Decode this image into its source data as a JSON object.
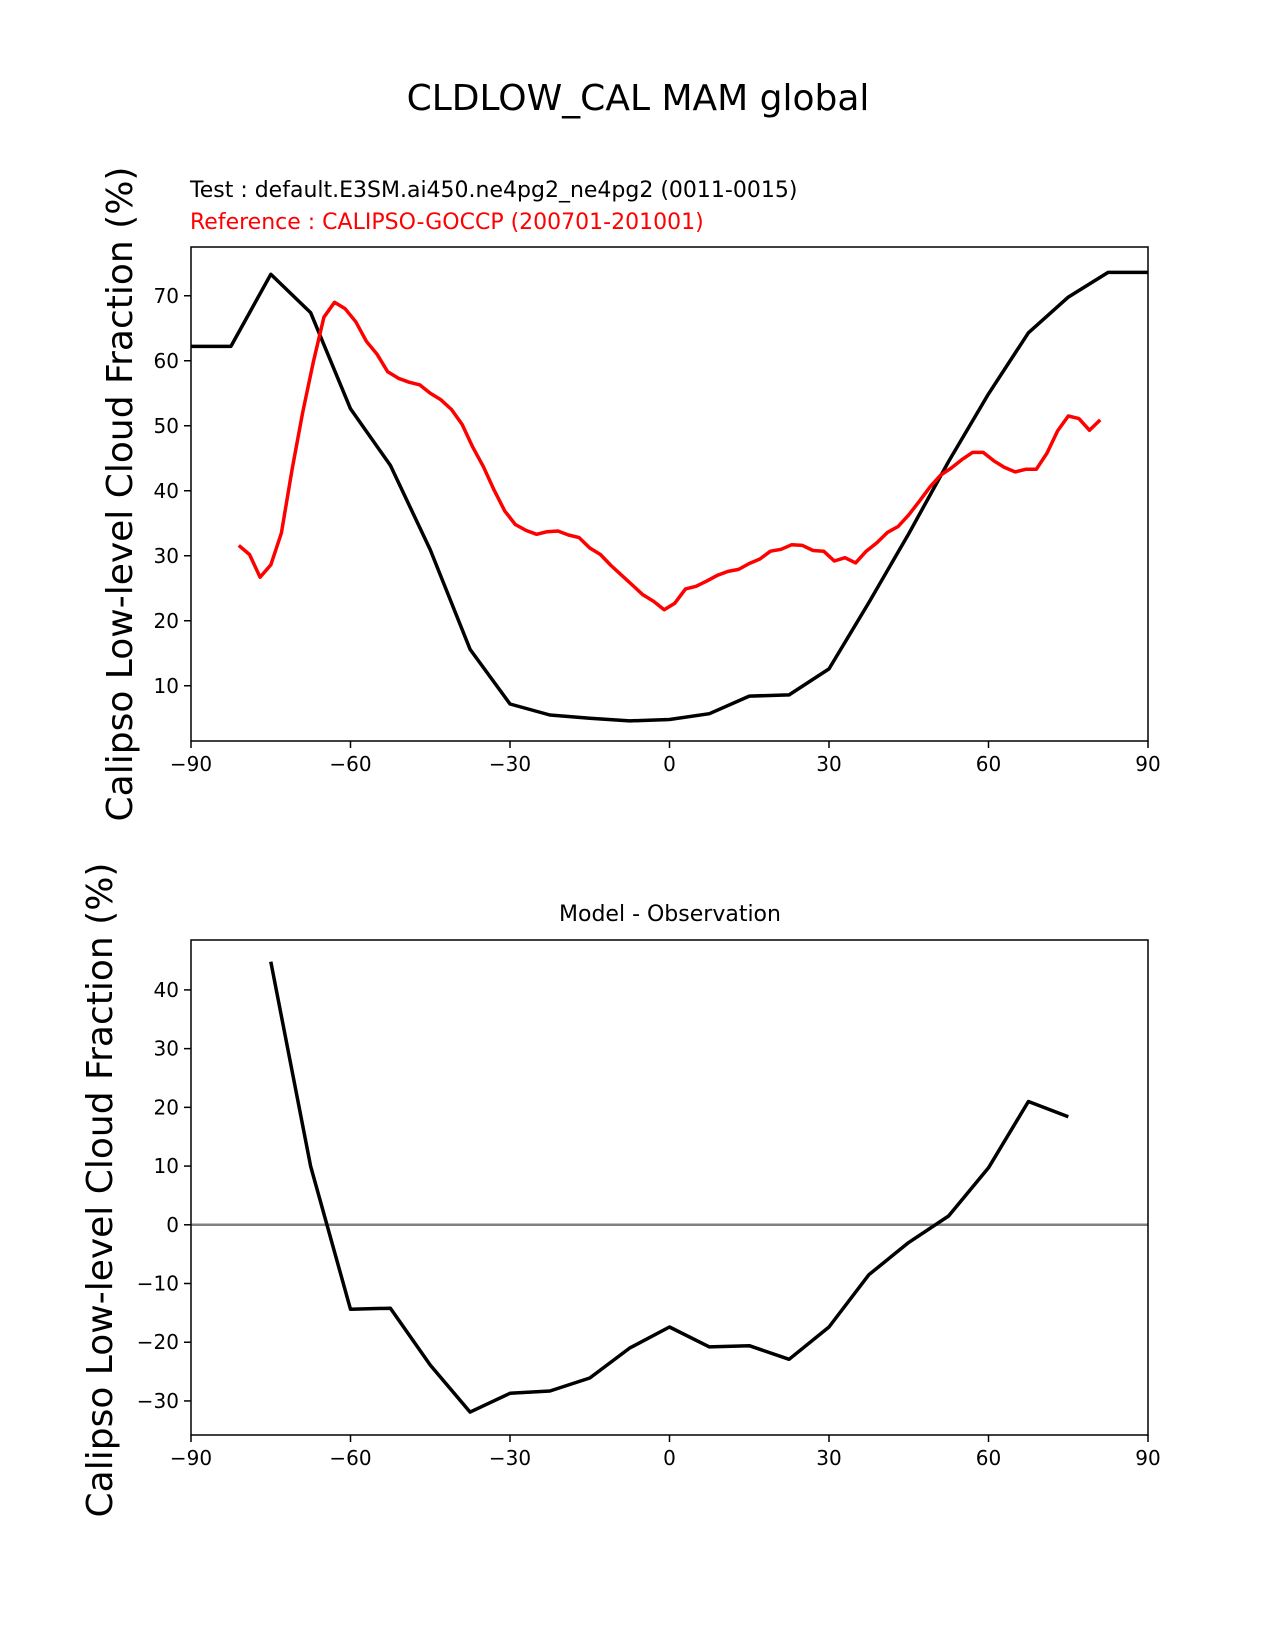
{
  "suptitle": "CLDLOW_CAL MAM global",
  "colors": {
    "test": "#000000",
    "reference": "#ff0000",
    "zero_line": "#808080"
  },
  "chart_data": [
    {
      "type": "line",
      "test_label": "Test : default.E3SM.ai450.ne4pg2_ne4pg2 (0011-0015)",
      "reference_label": "Reference : CALIPSO-GOCCP (200701-201001)",
      "ylabel": "Calipso Low-level Cloud Fraction (%)",
      "xlim": [
        -90,
        90
      ],
      "ylim": [
        1.5,
        77.5
      ],
      "xticks": [
        -90,
        -60,
        -30,
        0,
        30,
        60,
        90
      ],
      "xtick_labels": [
        "−90",
        "−60",
        "−30",
        "0",
        "30",
        "60",
        "90"
      ],
      "yticks": [
        10,
        20,
        30,
        40,
        50,
        60,
        70
      ],
      "ytick_labels": [
        "10",
        "20",
        "30",
        "40",
        "50",
        "60",
        "70"
      ],
      "series": [
        {
          "role": "test",
          "color": "#000000",
          "x": [
            -90,
            -82.5,
            -75,
            -67.5,
            -60,
            -52.5,
            -45,
            -37.5,
            -30,
            -22.5,
            -15,
            -7.5,
            0,
            7.5,
            15,
            22.5,
            30,
            37.5,
            45,
            52.5,
            60,
            67.5,
            75,
            82.5,
            90
          ],
          "y": [
            62.2,
            62.2,
            73.3,
            67.4,
            52.6,
            43.9,
            30.9,
            15.6,
            7.2,
            5.5,
            5.0,
            4.6,
            4.8,
            5.7,
            8.4,
            8.6,
            12.6,
            22.8,
            33.4,
            44.5,
            54.9,
            64.3,
            69.8,
            73.6,
            73.6
          ]
        },
        {
          "role": "reference",
          "color": "#ff0000",
          "x": [
            -81,
            -79,
            -77,
            -75,
            -73,
            -71,
            -69,
            -67,
            -65,
            -63,
            -61,
            -59,
            -57,
            -55,
            -53,
            -51,
            -49,
            -47,
            -45,
            -43,
            -41,
            -39,
            -37,
            -35,
            -33,
            -31,
            -29,
            -27,
            -25,
            -23,
            -21,
            -19,
            -17,
            -15,
            -13,
            -11,
            -9,
            -7,
            -5,
            -3,
            -1,
            1,
            3,
            5,
            7,
            9,
            11,
            13,
            15,
            17,
            19,
            21,
            23,
            25,
            27,
            29,
            31,
            33,
            35,
            37,
            39,
            41,
            43,
            45,
            47,
            49,
            51,
            53,
            55,
            57,
            59,
            61,
            63,
            65,
            67,
            69,
            71,
            73,
            75,
            77,
            79,
            81
          ],
          "y": [
            31.6,
            30.2,
            26.7,
            28.6,
            33.5,
            43.2,
            52.0,
            59.8,
            66.7,
            69.0,
            68.0,
            66.0,
            63.0,
            61.0,
            58.3,
            57.3,
            56.7,
            56.3,
            55.0,
            54.0,
            52.5,
            50.2,
            46.7,
            43.7,
            40.1,
            36.9,
            34.8,
            33.9,
            33.3,
            33.7,
            33.8,
            33.2,
            32.8,
            31.2,
            30.2,
            28.5,
            27.0,
            25.5,
            24.0,
            23.0,
            21.7,
            22.7,
            24.9,
            25.3,
            26.1,
            27.0,
            27.6,
            27.9,
            28.8,
            29.5,
            30.7,
            31.0,
            31.7,
            31.6,
            30.8,
            30.7,
            29.2,
            29.7,
            28.9,
            30.7,
            32.0,
            33.6,
            34.5,
            36.3,
            38.4,
            40.6,
            42.4,
            43.5,
            44.8,
            45.9,
            45.9,
            44.6,
            43.6,
            42.9,
            43.3,
            43.3,
            45.8,
            49.2,
            51.5,
            51.1,
            49.3,
            50.9
          ]
        }
      ]
    },
    {
      "type": "line",
      "title": "Model - Observation",
      "ylabel": "Calipso Low-level Cloud Fraction (%)",
      "xlim": [
        -90,
        90
      ],
      "ylim": [
        -35.8,
        48.5
      ],
      "xticks": [
        -90,
        -60,
        -30,
        0,
        30,
        60,
        90
      ],
      "xtick_labels": [
        "−90",
        "−60",
        "−30",
        "0",
        "30",
        "60",
        "90"
      ],
      "yticks": [
        -30,
        -20,
        -10,
        0,
        10,
        20,
        30,
        40
      ],
      "ytick_labels": [
        "−30",
        "−20",
        "−10",
        "0",
        "10",
        "20",
        "30",
        "40"
      ],
      "zero_line": true,
      "series": [
        {
          "role": "difference",
          "color": "#000000",
          "x": [
            -75,
            -67.5,
            -60,
            -52.5,
            -45,
            -37.5,
            -30,
            -22.5,
            -15,
            -7.5,
            0,
            7.5,
            15,
            22.5,
            30,
            37.5,
            45,
            52.5,
            60,
            67.5,
            75
          ],
          "y": [
            44.8,
            10.0,
            -14.4,
            -14.2,
            -23.9,
            -31.9,
            -28.7,
            -28.3,
            -26.1,
            -21.0,
            -17.4,
            -20.8,
            -20.6,
            -22.9,
            -17.4,
            -8.5,
            -3.0,
            1.5,
            9.7,
            21.0,
            18.4
          ]
        }
      ]
    }
  ]
}
